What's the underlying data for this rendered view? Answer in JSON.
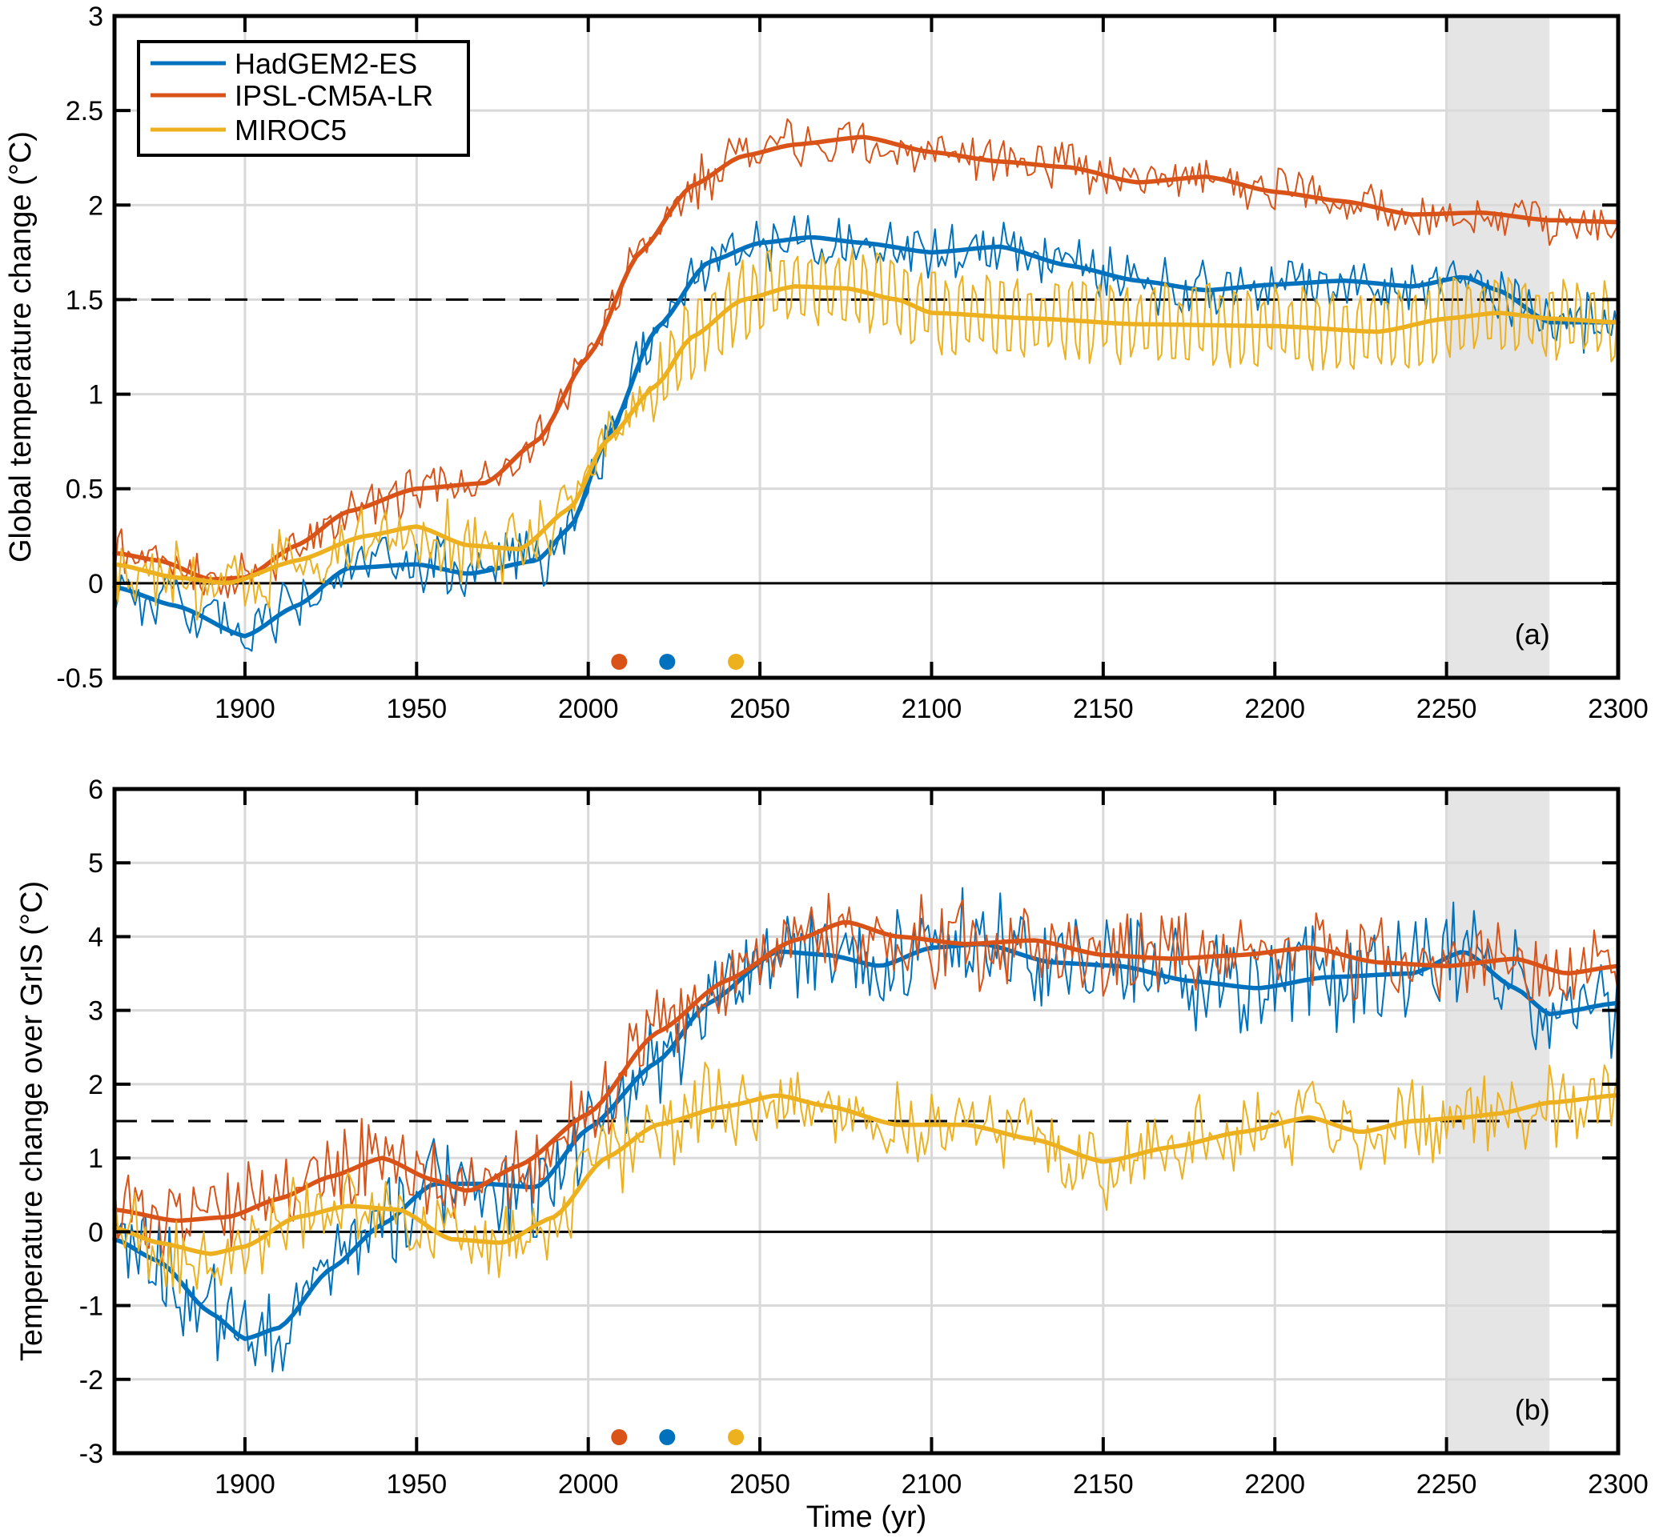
{
  "chart_data": [
    {
      "type": "line",
      "panel_label": "(a)",
      "ylabel": "Global temperature change (°C)",
      "xlabel": "",
      "xlim": [
        1862,
        2300
      ],
      "ylim": [
        -0.5,
        3
      ],
      "xticks": [
        1900,
        1950,
        2000,
        2050,
        2100,
        2150,
        2200,
        2250,
        2300
      ],
      "yticks": [
        -0.5,
        0,
        0.5,
        1,
        1.5,
        2,
        2.5,
        3
      ],
      "ytick_labels": [
        "-0.5",
        "0",
        "0.5",
        "1",
        "1.5",
        "2",
        "2.5",
        "3"
      ],
      "grid": true,
      "reference_lines": [
        {
          "y": 0,
          "style": "solid"
        },
        {
          "y": 1.5,
          "style": "dashed"
        }
      ],
      "shaded_period": [
        2250,
        2280
      ],
      "markers": [
        {
          "series": "IPSL-CM5A-LR",
          "x": 2009
        },
        {
          "series": "HadGEM2-ES",
          "x": 2023
        },
        {
          "series": "MIROC5",
          "x": 2043
        }
      ],
      "series": [
        {
          "name": "HadGEM2-ES",
          "color": "#0072BD",
          "noise": 0.12,
          "smoothed": [
            [
              1862,
              -0.02
            ],
            [
              1880,
              -0.12
            ],
            [
              1900,
              -0.28
            ],
            [
              1915,
              -0.12
            ],
            [
              1930,
              0.08
            ],
            [
              1950,
              0.1
            ],
            [
              1965,
              0.05
            ],
            [
              1985,
              0.12
            ],
            [
              1995,
              0.3
            ],
            [
              2005,
              0.75
            ],
            [
              2020,
              1.35
            ],
            [
              2035,
              1.7
            ],
            [
              2050,
              1.8
            ],
            [
              2065,
              1.83
            ],
            [
              2080,
              1.8
            ],
            [
              2100,
              1.75
            ],
            [
              2120,
              1.78
            ],
            [
              2140,
              1.68
            ],
            [
              2160,
              1.6
            ],
            [
              2180,
              1.55
            ],
            [
              2200,
              1.58
            ],
            [
              2220,
              1.6
            ],
            [
              2240,
              1.57
            ],
            [
              2255,
              1.62
            ],
            [
              2265,
              1.55
            ],
            [
              2280,
              1.38
            ],
            [
              2300,
              1.38
            ]
          ]
        },
        {
          "name": "IPSL-CM5A-LR",
          "color": "#D95319",
          "noise": 0.1,
          "smoothed": [
            [
              1862,
              0.16
            ],
            [
              1875,
              0.12
            ],
            [
              1890,
              0.02
            ],
            [
              1900,
              0.03
            ],
            [
              1915,
              0.2
            ],
            [
              1930,
              0.38
            ],
            [
              1950,
              0.5
            ],
            [
              1970,
              0.53
            ],
            [
              1985,
              0.75
            ],
            [
              2000,
              1.2
            ],
            [
              2015,
              1.75
            ],
            [
              2030,
              2.1
            ],
            [
              2045,
              2.26
            ],
            [
              2060,
              2.32
            ],
            [
              2080,
              2.36
            ],
            [
              2100,
              2.28
            ],
            [
              2120,
              2.23
            ],
            [
              2140,
              2.2
            ],
            [
              2160,
              2.12
            ],
            [
              2180,
              2.15
            ],
            [
              2200,
              2.07
            ],
            [
              2220,
              2.02
            ],
            [
              2240,
              1.95
            ],
            [
              2260,
              1.96
            ],
            [
              2280,
              1.92
            ],
            [
              2300,
              1.91
            ]
          ]
        },
        {
          "name": "MIROC5",
          "color": "#EDB120",
          "noise": 0.16,
          "smoothed": [
            [
              1862,
              0.1
            ],
            [
              1880,
              0.03
            ],
            [
              1895,
              0.0
            ],
            [
              1915,
              0.12
            ],
            [
              1935,
              0.25
            ],
            [
              1950,
              0.3
            ],
            [
              1965,
              0.2
            ],
            [
              1980,
              0.18
            ],
            [
              1995,
              0.4
            ],
            [
              2005,
              0.75
            ],
            [
              2020,
              1.05
            ],
            [
              2030,
              1.3
            ],
            [
              2045,
              1.5
            ],
            [
              2060,
              1.57
            ],
            [
              2075,
              1.56
            ],
            [
              2090,
              1.5
            ],
            [
              2100,
              1.43
            ],
            [
              2130,
              1.4
            ],
            [
              2160,
              1.37
            ],
            [
              2200,
              1.36
            ],
            [
              2230,
              1.33
            ],
            [
              2250,
              1.4
            ],
            [
              2265,
              1.43
            ],
            [
              2280,
              1.4
            ],
            [
              2300,
              1.38
            ]
          ]
        }
      ]
    },
    {
      "type": "line",
      "panel_label": "(b)",
      "ylabel": "Temperature change over GrIS (°C)",
      "xlabel": "Time (yr)",
      "xlim": [
        1862,
        2300
      ],
      "ylim": [
        -3,
        6
      ],
      "xticks": [
        1900,
        1950,
        2000,
        2050,
        2100,
        2150,
        2200,
        2250,
        2300
      ],
      "yticks": [
        -3,
        -2,
        -1,
        0,
        1,
        2,
        3,
        4,
        5,
        6
      ],
      "ytick_labels": [
        "-3",
        "-2",
        "-1",
        "0",
        "1",
        "2",
        "3",
        "4",
        "5",
        "6"
      ],
      "grid": true,
      "reference_lines": [
        {
          "y": 0,
          "style": "solid"
        },
        {
          "y": 1.5,
          "style": "dashed"
        }
      ],
      "shaded_period": [
        2250,
        2280
      ],
      "markers": [
        {
          "series": "IPSL-CM5A-LR",
          "x": 2009
        },
        {
          "series": "HadGEM2-ES",
          "x": 2023
        },
        {
          "series": "MIROC5",
          "x": 2043
        }
      ],
      "series": [
        {
          "name": "HadGEM2-ES",
          "color": "#0072BD",
          "noise": 0.55,
          "smoothed": [
            [
              1862,
              -0.1
            ],
            [
              1875,
              -0.4
            ],
            [
              1890,
              -1.1
            ],
            [
              1900,
              -1.45
            ],
            [
              1910,
              -1.3
            ],
            [
              1925,
              -0.5
            ],
            [
              1940,
              0.1
            ],
            [
              1955,
              0.65
            ],
            [
              1970,
              0.65
            ],
            [
              1985,
              0.6
            ],
            [
              2000,
              1.4
            ],
            [
              2020,
              2.3
            ],
            [
              2035,
              3.1
            ],
            [
              2055,
              3.8
            ],
            [
              2070,
              3.75
            ],
            [
              2085,
              3.6
            ],
            [
              2100,
              3.85
            ],
            [
              2115,
              3.9
            ],
            [
              2135,
              3.65
            ],
            [
              2155,
              3.6
            ],
            [
              2175,
              3.4
            ],
            [
              2195,
              3.3
            ],
            [
              2215,
              3.45
            ],
            [
              2240,
              3.5
            ],
            [
              2255,
              3.8
            ],
            [
              2270,
              3.3
            ],
            [
              2280,
              2.95
            ],
            [
              2300,
              3.1
            ]
          ]
        },
        {
          "name": "IPSL-CM5A-LR",
          "color": "#D95319",
          "noise": 0.45,
          "smoothed": [
            [
              1862,
              0.3
            ],
            [
              1880,
              0.15
            ],
            [
              1895,
              0.2
            ],
            [
              1910,
              0.45
            ],
            [
              1925,
              0.75
            ],
            [
              1940,
              1.0
            ],
            [
              1955,
              0.7
            ],
            [
              1965,
              0.55
            ],
            [
              1980,
              0.9
            ],
            [
              2000,
              1.6
            ],
            [
              2020,
              2.7
            ],
            [
              2040,
              3.4
            ],
            [
              2060,
              3.95
            ],
            [
              2075,
              4.2
            ],
            [
              2090,
              4.0
            ],
            [
              2110,
              3.9
            ],
            [
              2130,
              3.95
            ],
            [
              2150,
              3.75
            ],
            [
              2170,
              3.7
            ],
            [
              2190,
              3.75
            ],
            [
              2210,
              3.85
            ],
            [
              2230,
              3.65
            ],
            [
              2250,
              3.6
            ],
            [
              2270,
              3.7
            ],
            [
              2285,
              3.5
            ],
            [
              2300,
              3.6
            ]
          ]
        },
        {
          "name": "MIROC5",
          "color": "#EDB120",
          "noise": 0.45,
          "smoothed": [
            [
              1862,
              0.05
            ],
            [
              1875,
              -0.15
            ],
            [
              1890,
              -0.3
            ],
            [
              1900,
              -0.2
            ],
            [
              1915,
              0.2
            ],
            [
              1930,
              0.35
            ],
            [
              1945,
              0.3
            ],
            [
              1960,
              -0.1
            ],
            [
              1975,
              -0.15
            ],
            [
              1990,
              0.2
            ],
            [
              2005,
              1.0
            ],
            [
              2020,
              1.45
            ],
            [
              2040,
              1.7
            ],
            [
              2055,
              1.85
            ],
            [
              2070,
              1.7
            ],
            [
              2090,
              1.45
            ],
            [
              2110,
              1.45
            ],
            [
              2130,
              1.25
            ],
            [
              2150,
              0.95
            ],
            [
              2170,
              1.15
            ],
            [
              2190,
              1.35
            ],
            [
              2210,
              1.55
            ],
            [
              2225,
              1.35
            ],
            [
              2240,
              1.5
            ],
            [
              2255,
              1.55
            ],
            [
              2265,
              1.6
            ],
            [
              2280,
              1.75
            ],
            [
              2300,
              1.85
            ]
          ]
        }
      ]
    }
  ],
  "legend": {
    "placement": "top-left",
    "entries": [
      {
        "label": "HadGEM2-ES",
        "color": "#0072BD"
      },
      {
        "label": "IPSL-CM5A-LR",
        "color": "#D95319"
      },
      {
        "label": "MIROC5",
        "color": "#EDB120"
      }
    ]
  }
}
